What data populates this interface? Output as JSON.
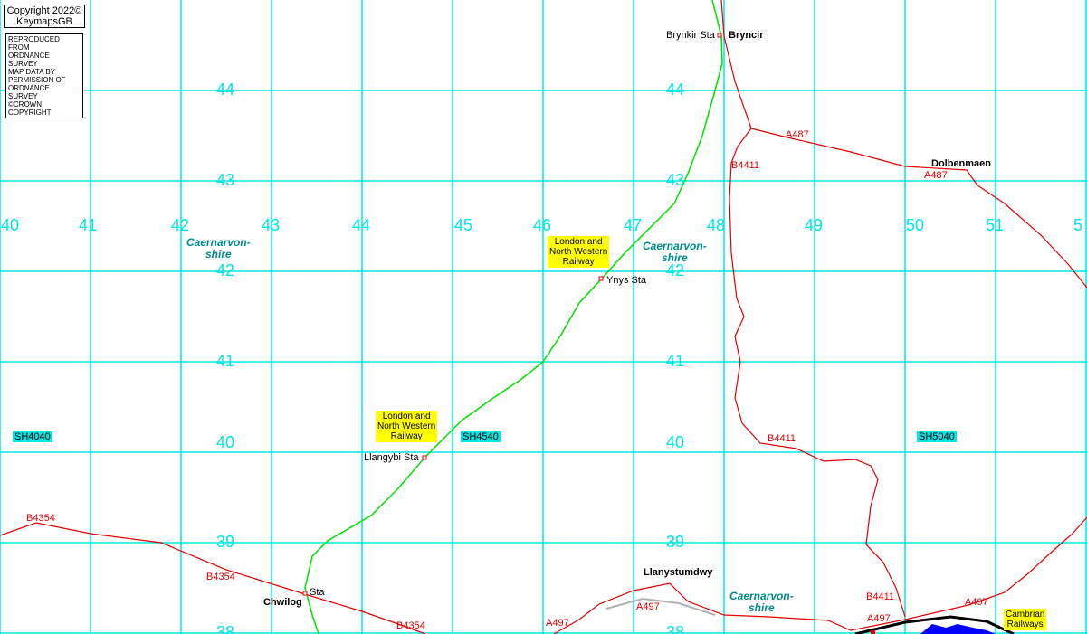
{
  "copyright": {
    "line1": "Copyright 2022©",
    "line2": "KeymapsGB"
  },
  "license": [
    "REPRODUCED FROM",
    "ORDNANCE SURVEY",
    "MAP DATA BY",
    "PERMISSION OF",
    "ORDNANCE SURVEY",
    "©CROWN COPYRIGHT"
  ],
  "eastings": [
    "40",
    "41",
    "42",
    "43",
    "44",
    "45",
    "46",
    "47",
    "48",
    "49",
    "50",
    "51",
    "5"
  ],
  "northings": [
    "44",
    "43",
    "42",
    "41",
    "40",
    "39",
    "38"
  ],
  "places": {
    "bryncir": "Bryncir",
    "dolbenmaen": "Dolbenmaen",
    "llanystumdwy": "Llanystumdwy",
    "chwilog": "Chwilog"
  },
  "stations": {
    "brynkir": "Brynkir Sta",
    "ynys": "Ynys Sta",
    "llangybi": "Llangybi Sta",
    "chwilog": "Sta"
  },
  "roads": {
    "a487a": "A487",
    "a487b": "A487",
    "b4411a": "B4411",
    "b4411b": "B4411",
    "b4411c": "B4411",
    "b4354a": "B4354",
    "b4354b": "B4354",
    "b4354c": "B4354",
    "a497a": "A497",
    "a497b": "A497",
    "a497c": "A497",
    "a497d": "A497"
  },
  "counties": {
    "c1": "Caernarvon-\nshire",
    "c2": "Caernarvon-\nshire",
    "c3": "Caernarvon-\nshire"
  },
  "railways": {
    "lnwr1": "London and\nNorth Western\nRailway",
    "lnwr2": "London and\nNorth Western\nRailway",
    "cambrian": "Cambrian\nRailways"
  },
  "grid_squares": {
    "sh4040": "SH4040",
    "sh4540": "SH4540",
    "sh5040": "SH5040"
  },
  "colors": {
    "grid": "#00e5e5",
    "road": "#e00000",
    "railway": "#00e000",
    "county": "#008b8b",
    "label_bg": "#ffff00",
    "water": "#0000ff"
  }
}
